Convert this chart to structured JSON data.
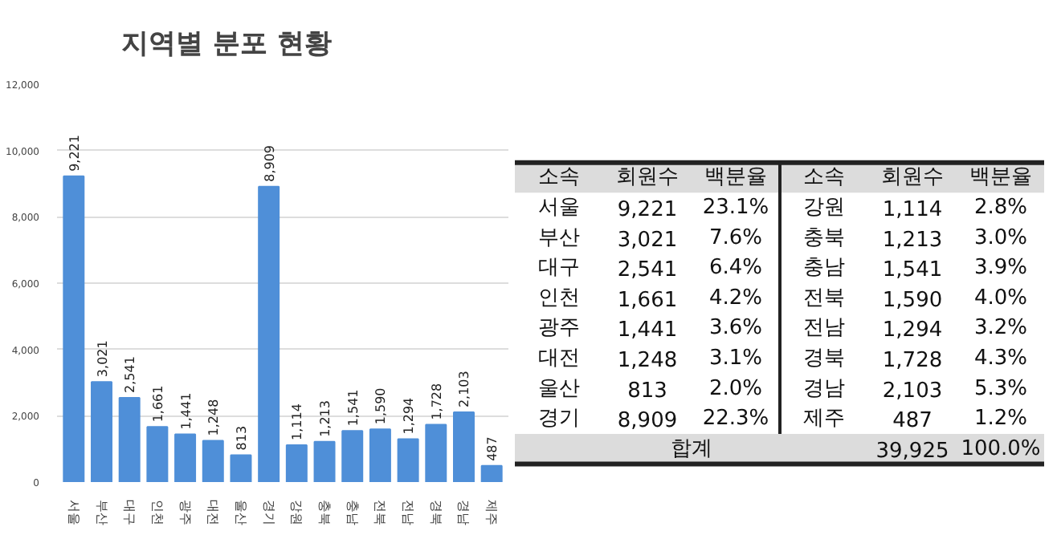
{
  "chart_data": [
    {
      "type": "bar",
      "title": "지역별 분포 현황",
      "categories": [
        "서울",
        "부산",
        "대구",
        "인천",
        "광주",
        "대전",
        "울산",
        "경기",
        "강원",
        "충북",
        "충남",
        "전북",
        "전남",
        "경북",
        "경남",
        "제주"
      ],
      "values": [
        9221,
        3021,
        2541,
        1661,
        1441,
        1248,
        813,
        8909,
        1114,
        1213,
        1541,
        1590,
        1294,
        1728,
        2103,
        487
      ],
      "color": "#4f8fd8",
      "ylim": [
        0,
        12000
      ],
      "yticks": [
        {
          "value": 0,
          "label": "0"
        },
        {
          "value": 2000,
          "label": "2,000"
        },
        {
          "value": 4000,
          "label": "4,000"
        },
        {
          "value": 6000,
          "label": "6,000"
        },
        {
          "value": 8000,
          "label": "8,000"
        },
        {
          "value": 10000,
          "label": "10,000"
        },
        {
          "value": 12000,
          "label": "12,000"
        }
      ],
      "grid": "y",
      "value_labels": [
        "9,221",
        "3,021",
        "2,541",
        "1,661",
        "1,441",
        "1,248",
        "813",
        "8,909",
        "1,114",
        "1,213",
        "1,541",
        "1,590",
        "1,294",
        "1,728",
        "2,103",
        "487"
      ]
    },
    {
      "type": "other",
      "annotations": [
        "소속",
        "회원수",
        "백분율",
        "소속",
        "회원수",
        "백분율",
        "서울",
        "9,221",
        "23.1%",
        "강원",
        "1,114",
        "2.8%",
        "부산",
        "3,021",
        "7.6%",
        "충북",
        "1,213",
        "3.0%",
        "대구",
        "2,541",
        "6.4%",
        "충남",
        "1,541",
        "3.9%",
        "인천",
        "1,661",
        "4.2%",
        "전북",
        "1,590",
        "4.0%",
        "광주",
        "1,441",
        "3.6%",
        "전남",
        "1,294",
        "3.2%",
        "대전",
        "1,248",
        "3.1%",
        "경북",
        "1,728",
        "4.3%",
        "울산",
        "813",
        "2.0%",
        "경남",
        "2,103",
        "5.3%",
        "경기",
        "8,909",
        "22.3%",
        "제주",
        "487",
        "1.2%",
        "합계",
        "39,925",
        "100.0%"
      ]
    }
  ]
}
